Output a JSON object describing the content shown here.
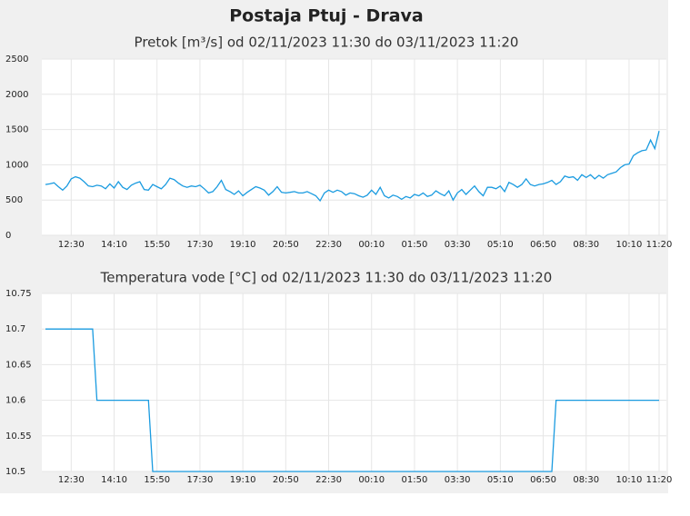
{
  "title": "Postaja Ptuj - Drava",
  "chart_data": [
    {
      "type": "line",
      "title": "Pretok [m³/s] od 02/11/2023 11:30 do 03/11/2023 11:20",
      "categories": [
        null,
        null,
        null,
        null,
        null,
        null,
        "12:30",
        null,
        null,
        null,
        null,
        null,
        null,
        null,
        null,
        null,
        "14:10",
        null,
        null,
        null,
        null,
        null,
        null,
        null,
        null,
        null,
        "15:50",
        null,
        null,
        null,
        null,
        null,
        null,
        null,
        null,
        null,
        "17:30",
        null,
        null,
        null,
        null,
        null,
        null,
        null,
        null,
        null,
        "19:10",
        null,
        null,
        null,
        null,
        null,
        null,
        null,
        null,
        null,
        "20:50",
        null,
        null,
        null,
        null,
        null,
        null,
        null,
        null,
        null,
        "22:30",
        null,
        null,
        null,
        null,
        null,
        null,
        null,
        null,
        null,
        "00:10",
        null,
        null,
        null,
        null,
        null,
        null,
        null,
        null,
        null,
        "01:50",
        null,
        null,
        null,
        null,
        null,
        null,
        null,
        null,
        null,
        "03:30",
        null,
        null,
        null,
        null,
        null,
        null,
        null,
        null,
        null,
        "05:10",
        null,
        null,
        null,
        null,
        null,
        null,
        null,
        null,
        null,
        "06:50",
        null,
        null,
        null,
        null,
        null,
        null,
        null,
        null,
        null,
        "08:30",
        null,
        null,
        null,
        null,
        null,
        null,
        null,
        null,
        null,
        "10:10",
        null,
        null,
        null,
        null,
        null,
        null,
        "11:20"
      ],
      "values": [
        720,
        730,
        745,
        690,
        640,
        700,
        800,
        830,
        810,
        760,
        700,
        690,
        710,
        700,
        660,
        730,
        670,
        760,
        680,
        650,
        710,
        740,
        760,
        650,
        640,
        720,
        690,
        660,
        720,
        810,
        790,
        740,
        700,
        680,
        700,
        690,
        710,
        660,
        600,
        620,
        690,
        780,
        650,
        620,
        580,
        630,
        560,
        610,
        650,
        690,
        670,
        640,
        570,
        620,
        690,
        610,
        600,
        610,
        620,
        600,
        600,
        620,
        590,
        560,
        490,
        600,
        640,
        610,
        640,
        620,
        570,
        600,
        590,
        560,
        540,
        570,
        640,
        580,
        680,
        560,
        530,
        570,
        550,
        510,
        550,
        530,
        580,
        560,
        600,
        550,
        570,
        630,
        590,
        560,
        630,
        500,
        600,
        650,
        580,
        640,
        700,
        620,
        560,
        680,
        680,
        660,
        700,
        620,
        750,
        720,
        680,
        720,
        800,
        720,
        700,
        720,
        730,
        750,
        780,
        720,
        760,
        840,
        820,
        830,
        780,
        860,
        820,
        860,
        800,
        850,
        810,
        860,
        880,
        900,
        960,
        1000,
        1010,
        1130,
        1170,
        1200,
        1210,
        1350,
        1230,
        1480
      ],
      "color": "#1a9be0",
      "ylim": [
        0,
        2500
      ],
      "yticks": [
        0,
        500,
        1000,
        1500,
        2000,
        2500
      ],
      "grid": true
    },
    {
      "type": "line",
      "title": "Temperatura vode [°C] od 02/11/2023 11:30 do 03/11/2023 11:20",
      "categories": [
        null,
        null,
        null,
        null,
        null,
        null,
        "12:30",
        null,
        null,
        null,
        null,
        null,
        null,
        null,
        null,
        null,
        "14:10",
        null,
        null,
        null,
        null,
        null,
        null,
        null,
        null,
        null,
        "15:50",
        null,
        null,
        null,
        null,
        null,
        null,
        null,
        null,
        null,
        "17:30",
        null,
        null,
        null,
        null,
        null,
        null,
        null,
        null,
        null,
        "19:10",
        null,
        null,
        null,
        null,
        null,
        null,
        null,
        null,
        null,
        "20:50",
        null,
        null,
        null,
        null,
        null,
        null,
        null,
        null,
        null,
        "22:30",
        null,
        null,
        null,
        null,
        null,
        null,
        null,
        null,
        null,
        "00:10",
        null,
        null,
        null,
        null,
        null,
        null,
        null,
        null,
        null,
        "01:50",
        null,
        null,
        null,
        null,
        null,
        null,
        null,
        null,
        null,
        "03:30",
        null,
        null,
        null,
        null,
        null,
        null,
        null,
        null,
        null,
        "05:10",
        null,
        null,
        null,
        null,
        null,
        null,
        null,
        null,
        null,
        "06:50",
        null,
        null,
        null,
        null,
        null,
        null,
        null,
        null,
        null,
        "08:30",
        null,
        null,
        null,
        null,
        null,
        null,
        null,
        null,
        null,
        "10:10",
        null,
        null,
        null,
        null,
        null,
        null,
        "11:20"
      ],
      "values": [
        10.7,
        10.7,
        10.7,
        10.7,
        10.7,
        10.7,
        10.7,
        10.7,
        10.7,
        10.7,
        10.7,
        10.7,
        10.6,
        10.6,
        10.6,
        10.6,
        10.6,
        10.6,
        10.6,
        10.6,
        10.6,
        10.6,
        10.6,
        10.6,
        10.6,
        10.5,
        10.5,
        10.5,
        10.5,
        10.5,
        10.5,
        10.5,
        10.5,
        10.5,
        10.5,
        10.5,
        10.5,
        10.5,
        10.5,
        10.5,
        10.5,
        10.5,
        10.5,
        10.5,
        10.5,
        10.5,
        10.5,
        10.5,
        10.5,
        10.5,
        10.5,
        10.5,
        10.5,
        10.5,
        10.5,
        10.5,
        10.5,
        10.5,
        10.5,
        10.5,
        10.5,
        10.5,
        10.5,
        10.5,
        10.5,
        10.5,
        10.5,
        10.5,
        10.5,
        10.5,
        10.5,
        10.5,
        10.5,
        10.5,
        10.5,
        10.5,
        10.5,
        10.5,
        10.5,
        10.5,
        10.5,
        10.5,
        10.5,
        10.5,
        10.5,
        10.5,
        10.5,
        10.5,
        10.5,
        10.5,
        10.5,
        10.5,
        10.5,
        10.5,
        10.5,
        10.5,
        10.5,
        10.5,
        10.5,
        10.5,
        10.5,
        10.5,
        10.5,
        10.5,
        10.5,
        10.5,
        10.5,
        10.5,
        10.5,
        10.5,
        10.5,
        10.5,
        10.5,
        10.5,
        10.5,
        10.5,
        10.5,
        10.5,
        10.5,
        10.6,
        10.6,
        10.6,
        10.6,
        10.6,
        10.6,
        10.6,
        10.6,
        10.6,
        10.6,
        10.6,
        10.6,
        10.6,
        10.6,
        10.6,
        10.6,
        10.6,
        10.6,
        10.6,
        10.6,
        10.6,
        10.6,
        10.6,
        10.6,
        10.6
      ],
      "color": "#1a9be0",
      "ylim": [
        10.5,
        10.75
      ],
      "yticks": [
        10.5,
        10.55,
        10.6,
        10.65,
        10.7,
        10.75
      ],
      "grid": true
    }
  ]
}
